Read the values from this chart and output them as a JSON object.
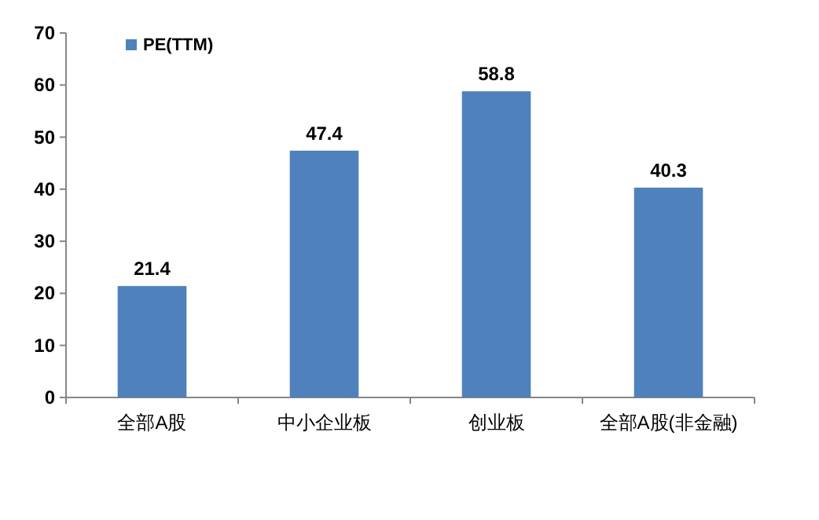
{
  "chart_data": {
    "type": "bar",
    "categories": [
      "全部A股",
      "中小企业板",
      "创业板",
      "全部A股(非金融)"
    ],
    "series": [
      {
        "name": "PE(TTM)",
        "color": "#4f81bd",
        "values": [
          21.4,
          47.4,
          58.8,
          40.3
        ]
      }
    ],
    "ylim": [
      0,
      70
    ],
    "yticks": [
      0,
      10,
      20,
      30,
      40,
      50,
      60,
      70
    ],
    "data_labels": true,
    "legend": "top left"
  }
}
